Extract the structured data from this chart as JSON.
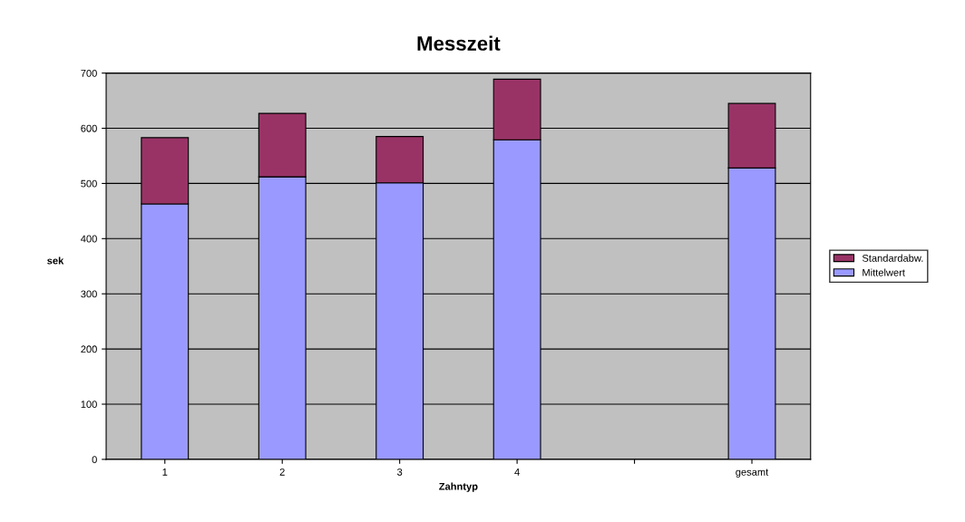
{
  "chart_data": {
    "type": "bar",
    "title": "Messzeit",
    "xlabel": "Zahntyp",
    "ylabel": "sek",
    "categories": [
      "1",
      "2",
      "3",
      "4",
      null,
      "gesamt"
    ],
    "stacked": true,
    "series": [
      {
        "name": "Mittelwert",
        "color": "#9999ff",
        "values": [
          463,
          512,
          501,
          579,
          null,
          528
        ]
      },
      {
        "name": "Standardabw.",
        "color": "#993366",
        "values": [
          120,
          115,
          84,
          110,
          null,
          117
        ]
      }
    ],
    "ylim": [
      0,
      700
    ],
    "yticks": [
      0,
      100,
      200,
      300,
      400,
      500,
      600,
      700
    ],
    "grid": "y",
    "legend": "right"
  }
}
